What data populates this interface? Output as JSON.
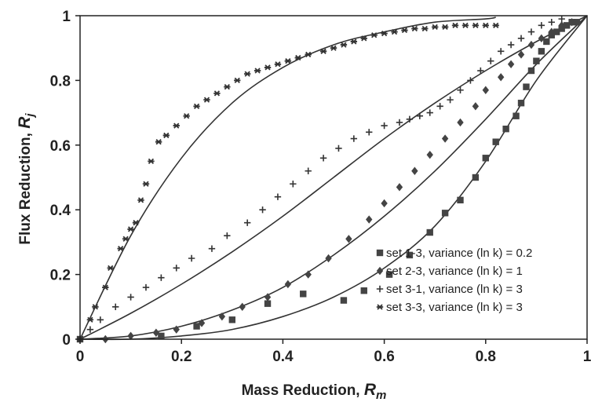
{
  "chart_data": {
    "type": "scatter",
    "title": "",
    "xlabel": "Mass Reduction, ",
    "xlabel_sub": "m",
    "ylabel": "Flux Reduction, ",
    "ylabel_sub": "j",
    "axis_symbol": "R",
    "xlim": [
      0,
      1
    ],
    "ylim": [
      0,
      1
    ],
    "x_ticks": [
      0,
      0.2,
      0.4,
      0.6,
      0.8,
      1
    ],
    "y_ticks": [
      0,
      0.2,
      0.4,
      0.6,
      0.8,
      1
    ],
    "x_tick_labels": [
      "0",
      "0.2",
      "0.4",
      "0.6",
      "0.8",
      "1"
    ],
    "y_tick_labels": [
      "0",
      "0.2",
      "0.4",
      "0.6",
      "0.8",
      "1"
    ],
    "grid": false,
    "legend_position": "lower-right",
    "series": [
      {
        "name": "set 1-3, variance (ln k) = 0.2",
        "marker": "square",
        "points": [
          [
            0,
            0
          ],
          [
            0.16,
            0.01
          ],
          [
            0.23,
            0.04
          ],
          [
            0.3,
            0.06
          ],
          [
            0.37,
            0.11
          ],
          [
            0.44,
            0.14
          ],
          [
            0.52,
            0.12
          ],
          [
            0.56,
            0.15
          ],
          [
            0.61,
            0.2
          ],
          [
            0.65,
            0.26
          ],
          [
            0.69,
            0.33
          ],
          [
            0.72,
            0.39
          ],
          [
            0.75,
            0.43
          ],
          [
            0.78,
            0.5
          ],
          [
            0.8,
            0.56
          ],
          [
            0.82,
            0.61
          ],
          [
            0.84,
            0.65
          ],
          [
            0.86,
            0.69
          ],
          [
            0.87,
            0.73
          ],
          [
            0.88,
            0.78
          ],
          [
            0.89,
            0.83
          ],
          [
            0.9,
            0.86
          ],
          [
            0.91,
            0.89
          ],
          [
            0.92,
            0.92
          ],
          [
            0.93,
            0.94
          ],
          [
            0.94,
            0.95
          ],
          [
            0.95,
            0.96
          ],
          [
            0.96,
            0.97
          ],
          [
            0.97,
            0.98
          ],
          [
            0.98,
            0.98
          ]
        ]
      },
      {
        "name": "set 2-3, variance (ln k) = 1",
        "marker": "diamond",
        "points": [
          [
            0,
            0
          ],
          [
            0.05,
            0
          ],
          [
            0.1,
            0.01
          ],
          [
            0.15,
            0.02
          ],
          [
            0.19,
            0.03
          ],
          [
            0.24,
            0.05
          ],
          [
            0.28,
            0.07
          ],
          [
            0.32,
            0.1
          ],
          [
            0.37,
            0.13
          ],
          [
            0.41,
            0.17
          ],
          [
            0.45,
            0.2
          ],
          [
            0.49,
            0.25
          ],
          [
            0.53,
            0.31
          ],
          [
            0.57,
            0.37
          ],
          [
            0.6,
            0.42
          ],
          [
            0.63,
            0.47
          ],
          [
            0.66,
            0.52
          ],
          [
            0.69,
            0.57
          ],
          [
            0.72,
            0.62
          ],
          [
            0.75,
            0.67
          ],
          [
            0.78,
            0.72
          ],
          [
            0.8,
            0.77
          ],
          [
            0.83,
            0.81
          ],
          [
            0.85,
            0.85
          ],
          [
            0.87,
            0.88
          ],
          [
            0.89,
            0.91
          ],
          [
            0.91,
            0.93
          ],
          [
            0.93,
            0.95
          ],
          [
            0.95,
            0.97
          ],
          [
            0.97,
            0.98
          ]
        ]
      },
      {
        "name": "set 3-1, variance (ln k) = 3",
        "marker": "plus",
        "points": [
          [
            0,
            0
          ],
          [
            0.02,
            0.03
          ],
          [
            0.04,
            0.06
          ],
          [
            0.07,
            0.1
          ],
          [
            0.1,
            0.13
          ],
          [
            0.13,
            0.16
          ],
          [
            0.16,
            0.19
          ],
          [
            0.19,
            0.22
          ],
          [
            0.22,
            0.25
          ],
          [
            0.26,
            0.28
          ],
          [
            0.29,
            0.32
          ],
          [
            0.33,
            0.36
          ],
          [
            0.36,
            0.4
          ],
          [
            0.39,
            0.44
          ],
          [
            0.42,
            0.48
          ],
          [
            0.45,
            0.52
          ],
          [
            0.48,
            0.56
          ],
          [
            0.51,
            0.59
          ],
          [
            0.54,
            0.62
          ],
          [
            0.57,
            0.64
          ],
          [
            0.6,
            0.66
          ],
          [
            0.63,
            0.67
          ],
          [
            0.65,
            0.68
          ],
          [
            0.67,
            0.69
          ],
          [
            0.69,
            0.7
          ],
          [
            0.71,
            0.72
          ],
          [
            0.73,
            0.74
          ],
          [
            0.75,
            0.77
          ],
          [
            0.77,
            0.8
          ],
          [
            0.79,
            0.83
          ],
          [
            0.81,
            0.86
          ],
          [
            0.83,
            0.89
          ],
          [
            0.85,
            0.91
          ],
          [
            0.87,
            0.93
          ],
          [
            0.89,
            0.95
          ],
          [
            0.91,
            0.97
          ],
          [
            0.93,
            0.98
          ],
          [
            0.95,
            0.99
          ]
        ]
      },
      {
        "name": "set 3-3, variance (ln k) = 3",
        "marker": "star",
        "points": [
          [
            0,
            0
          ],
          [
            0.02,
            0.06
          ],
          [
            0.03,
            0.1
          ],
          [
            0.05,
            0.16
          ],
          [
            0.06,
            0.22
          ],
          [
            0.08,
            0.28
          ],
          [
            0.09,
            0.31
          ],
          [
            0.1,
            0.34
          ],
          [
            0.11,
            0.36
          ],
          [
            0.12,
            0.43
          ],
          [
            0.13,
            0.48
          ],
          [
            0.14,
            0.55
          ],
          [
            0.155,
            0.61
          ],
          [
            0.17,
            0.63
          ],
          [
            0.19,
            0.66
          ],
          [
            0.21,
            0.69
          ],
          [
            0.23,
            0.72
          ],
          [
            0.25,
            0.74
          ],
          [
            0.27,
            0.76
          ],
          [
            0.29,
            0.78
          ],
          [
            0.31,
            0.8
          ],
          [
            0.33,
            0.82
          ],
          [
            0.35,
            0.83
          ],
          [
            0.37,
            0.84
          ],
          [
            0.39,
            0.85
          ],
          [
            0.41,
            0.86
          ],
          [
            0.43,
            0.87
          ],
          [
            0.45,
            0.88
          ],
          [
            0.48,
            0.89
          ],
          [
            0.5,
            0.9
          ],
          [
            0.52,
            0.91
          ],
          [
            0.54,
            0.92
          ],
          [
            0.56,
            0.93
          ],
          [
            0.58,
            0.94
          ],
          [
            0.6,
            0.945
          ],
          [
            0.62,
            0.95
          ],
          [
            0.64,
            0.955
          ],
          [
            0.66,
            0.96
          ],
          [
            0.68,
            0.96
          ],
          [
            0.7,
            0.965
          ],
          [
            0.72,
            0.965
          ],
          [
            0.74,
            0.97
          ],
          [
            0.76,
            0.97
          ],
          [
            0.78,
            0.97
          ],
          [
            0.8,
            0.97
          ],
          [
            0.82,
            0.97
          ]
        ]
      }
    ],
    "model_curves": [
      {
        "points": [
          [
            0,
            0
          ],
          [
            0.1,
            0.32
          ],
          [
            0.2,
            0.56
          ],
          [
            0.3,
            0.73
          ],
          [
            0.4,
            0.84
          ],
          [
            0.5,
            0.91
          ],
          [
            0.6,
            0.95
          ],
          [
            0.7,
            0.98
          ],
          [
            0.8,
            0.99
          ],
          [
            0.82,
            0.995
          ]
        ]
      },
      {
        "points": [
          [
            0,
            0
          ],
          [
            0.1,
            0.08
          ],
          [
            0.2,
            0.17
          ],
          [
            0.3,
            0.27
          ],
          [
            0.4,
            0.38
          ],
          [
            0.5,
            0.5
          ],
          [
            0.6,
            0.62
          ],
          [
            0.7,
            0.73
          ],
          [
            0.8,
            0.83
          ],
          [
            0.9,
            0.92
          ],
          [
            1,
            1
          ]
        ]
      },
      {
        "points": [
          [
            0,
            0
          ],
          [
            0.1,
            0.01
          ],
          [
            0.2,
            0.04
          ],
          [
            0.3,
            0.09
          ],
          [
            0.4,
            0.16
          ],
          [
            0.5,
            0.26
          ],
          [
            0.6,
            0.38
          ],
          [
            0.7,
            0.52
          ],
          [
            0.8,
            0.68
          ],
          [
            0.9,
            0.85
          ],
          [
            1,
            1
          ]
        ]
      },
      {
        "points": [
          [
            0,
            0
          ],
          [
            0.1,
            0
          ],
          [
            0.2,
            0.01
          ],
          [
            0.3,
            0.03
          ],
          [
            0.4,
            0.07
          ],
          [
            0.5,
            0.13
          ],
          [
            0.6,
            0.22
          ],
          [
            0.7,
            0.35
          ],
          [
            0.8,
            0.55
          ],
          [
            0.9,
            0.8
          ],
          [
            1,
            1
          ]
        ]
      }
    ]
  }
}
